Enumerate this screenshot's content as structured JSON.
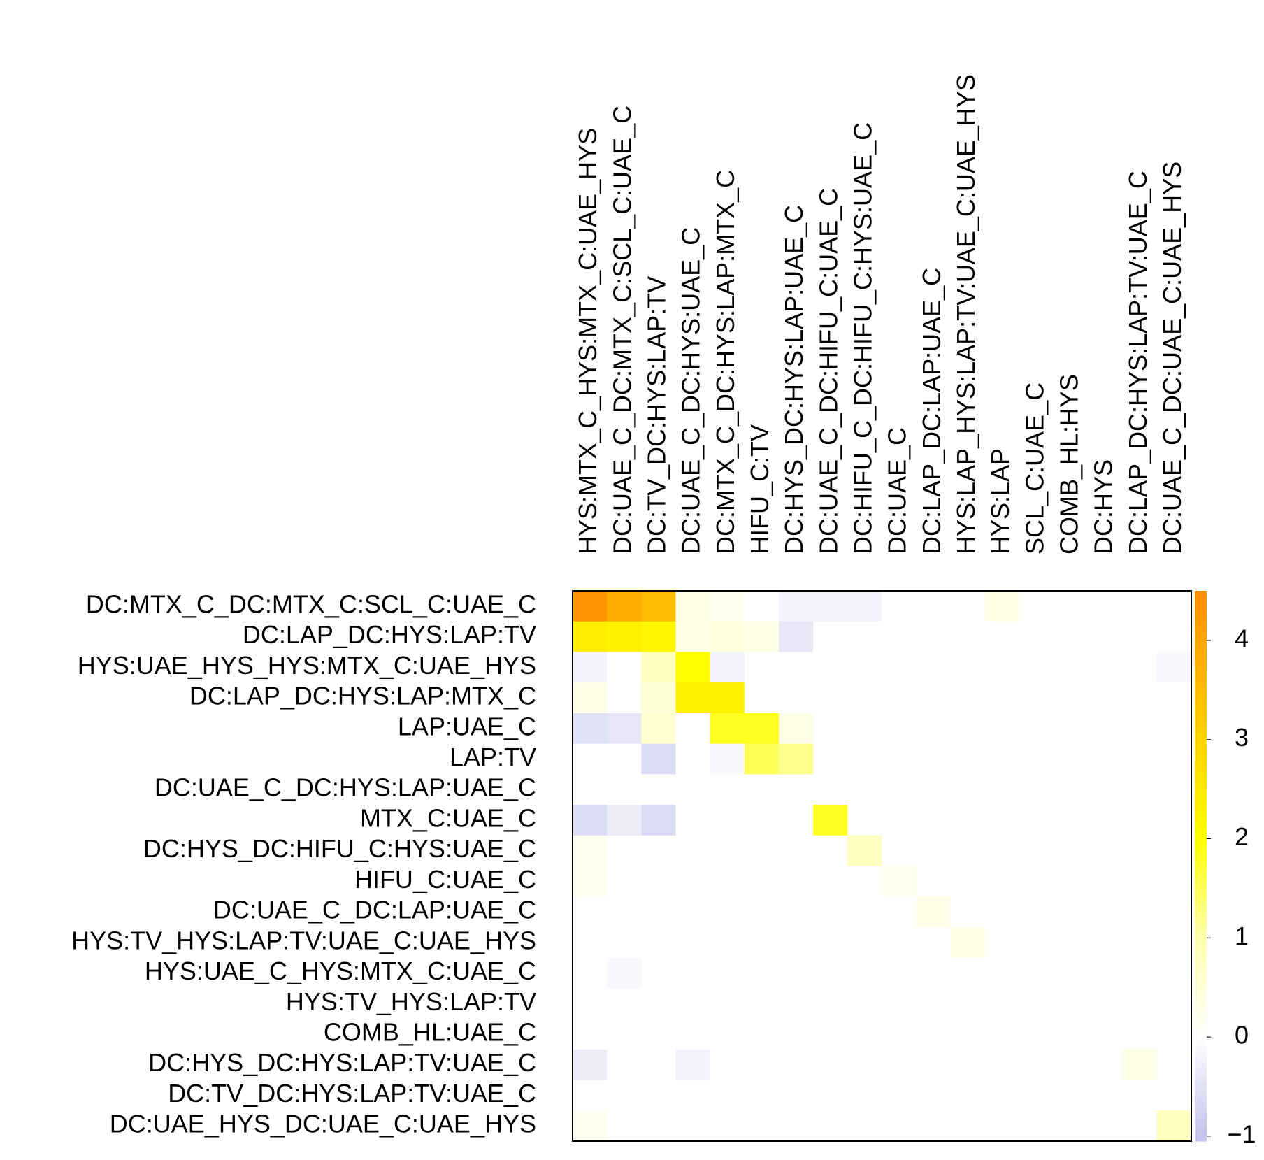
{
  "chart_data": {
    "type": "heatmap",
    "columns": [
      "HYS:MTX_C_HYS:MTX_C:UAE_HYS",
      "DC:UAE_C_DC:MTX_C:SCL_C:UAE_C",
      "DC:TV_DC:HYS:LAP:TV",
      "DC:UAE_C_DC:HYS:UAE_C",
      "DC:MTX_C_DC:HYS:LAP:MTX_C",
      "HIFU_C:TV",
      "DC:HYS_DC:HYS:LAP:UAE_C",
      "DC:UAE_C_DC:HIFU_C:UAE_C",
      "DC:HIFU_C_DC:HIFU_C:HYS:UAE_C",
      "DC:UAE_C",
      "DC:LAP_DC:LAP:UAE_C",
      "HYS:LAP_HYS:LAP:TV:UAE_C:UAE_HYS",
      "HYS:LAP",
      "SCL_C:UAE_C",
      "COMB_HL:HYS",
      "DC:HYS",
      "DC:LAP_DC:HYS:LAP:TV:UAE_C",
      "DC:UAE_C_DC:UAE_C:UAE_HYS"
    ],
    "rows": [
      "DC:MTX_C_DC:MTX_C:SCL_C:UAE_C",
      "DC:LAP_DC:HYS:LAP:TV",
      "HYS:UAE_HYS_HYS:MTX_C:UAE_HYS",
      "DC:LAP_DC:HYS:LAP:MTX_C",
      "LAP:UAE_C",
      "LAP:TV",
      "DC:UAE_C_DC:HYS:LAP:UAE_C",
      "MTX_C:UAE_C",
      "DC:HYS_DC:HIFU_C:HYS:UAE_C",
      "HIFU_C:UAE_C",
      "DC:UAE_C_DC:LAP:UAE_C",
      "HYS:TV_HYS:LAP:TV:UAE_C:UAE_HYS",
      "HYS:UAE_C_HYS:MTX_C:UAE_C",
      "HYS:TV_HYS:LAP:TV",
      "COMB_HL:UAE_C",
      "DC:HYS_DC:HYS:LAP:TV:UAE_C",
      "DC:TV_DC:HYS:LAP:TV:UAE_C",
      "DC:UAE_HYS_DC:UAE_C:UAE_HYS"
    ],
    "z": [
      [
        4.3,
        3.8,
        3.5,
        0.3,
        0.2,
        0,
        -0.2,
        -0.2,
        -0.2,
        0,
        0,
        0,
        0.3,
        0,
        0,
        0,
        0,
        0
      ],
      [
        2.4,
        2.3,
        2.2,
        0.3,
        0.4,
        0.3,
        -0.4,
        0,
        0,
        0,
        0,
        0,
        0,
        0,
        0,
        0,
        0,
        0
      ],
      [
        -0.2,
        0,
        0.8,
        2.0,
        -0.2,
        0,
        0,
        0,
        0,
        0,
        0,
        0,
        0,
        0,
        0,
        0,
        0,
        -0.1
      ],
      [
        0.3,
        0,
        0.5,
        2.3,
        2.3,
        0,
        0,
        0,
        0,
        0,
        0,
        0,
        0,
        0,
        0,
        0,
        0,
        0
      ],
      [
        -0.5,
        -0.4,
        0.6,
        0,
        1.8,
        1.8,
        0.3,
        0,
        0,
        0,
        0,
        0,
        0,
        0,
        0,
        0,
        0,
        0
      ],
      [
        0,
        0,
        -0.6,
        0,
        -0.1,
        1.5,
        1.2,
        0,
        0,
        0,
        0,
        0,
        0,
        0,
        0,
        0,
        0,
        0
      ],
      [
        0,
        0,
        0,
        0,
        0,
        0,
        0,
        0,
        0,
        0,
        0,
        0,
        0,
        0,
        0,
        0,
        0,
        0
      ],
      [
        -0.6,
        -0.3,
        -0.6,
        0,
        0,
        0,
        0,
        1.8,
        0,
        0,
        0,
        0,
        0,
        0,
        0,
        0,
        0,
        0
      ],
      [
        0.2,
        0,
        0,
        0,
        0,
        0,
        0,
        0,
        0.8,
        0,
        0,
        0,
        0,
        0,
        0,
        0,
        0,
        0
      ],
      [
        0.2,
        0,
        0,
        0,
        0,
        0,
        0,
        0,
        0,
        0.2,
        0,
        0,
        0,
        0,
        0,
        0,
        0,
        0
      ],
      [
        0,
        0,
        0,
        0,
        0,
        0,
        0,
        0,
        0,
        0,
        0.3,
        0,
        0,
        0,
        0,
        0,
        0,
        0
      ],
      [
        0,
        0,
        0,
        0,
        0,
        0,
        0,
        0,
        0,
        0,
        0,
        0.3,
        0,
        0,
        0,
        0,
        0,
        0
      ],
      [
        0,
        -0.1,
        0,
        0,
        0,
        0,
        0,
        0,
        0,
        0,
        0,
        0,
        0,
        0,
        0,
        0,
        0,
        0
      ],
      [
        0,
        0,
        0,
        0,
        0,
        0,
        0,
        0,
        0,
        0,
        0,
        0,
        0,
        0,
        0,
        0,
        0,
        0
      ],
      [
        0,
        0,
        0,
        0,
        0,
        0,
        0,
        0,
        0,
        0,
        0,
        0,
        0,
        0,
        0,
        0,
        0,
        0
      ],
      [
        -0.3,
        0,
        0,
        -0.2,
        0,
        0,
        0,
        0,
        0,
        0,
        0,
        0,
        0,
        0,
        0,
        0,
        0.3,
        0
      ],
      [
        0,
        0,
        0,
        0,
        0,
        0,
        0,
        0,
        0,
        0,
        0,
        0,
        0,
        0,
        0,
        0,
        0,
        0
      ],
      [
        0.2,
        0,
        0,
        0,
        0,
        0,
        0,
        0,
        0,
        0,
        0,
        0,
        0,
        0,
        0,
        0,
        0,
        0.8
      ]
    ],
    "zlim": [
      -1.05,
      4.5
    ],
    "zticks": [
      {
        "value": -1,
        "label": "−1"
      },
      0,
      1,
      2,
      3,
      4
    ],
    "colorscale": [
      {
        "value": -1,
        "color": "#c4c4ee"
      },
      {
        "value": 0,
        "color": "#ffffff"
      },
      {
        "value": 1,
        "color": "#ffffb0"
      },
      {
        "value": 2,
        "color": "#ffff00"
      },
      {
        "value": 3,
        "color": "#ffd400"
      },
      {
        "value": 4.5,
        "color": "#ff8c00"
      }
    ]
  }
}
